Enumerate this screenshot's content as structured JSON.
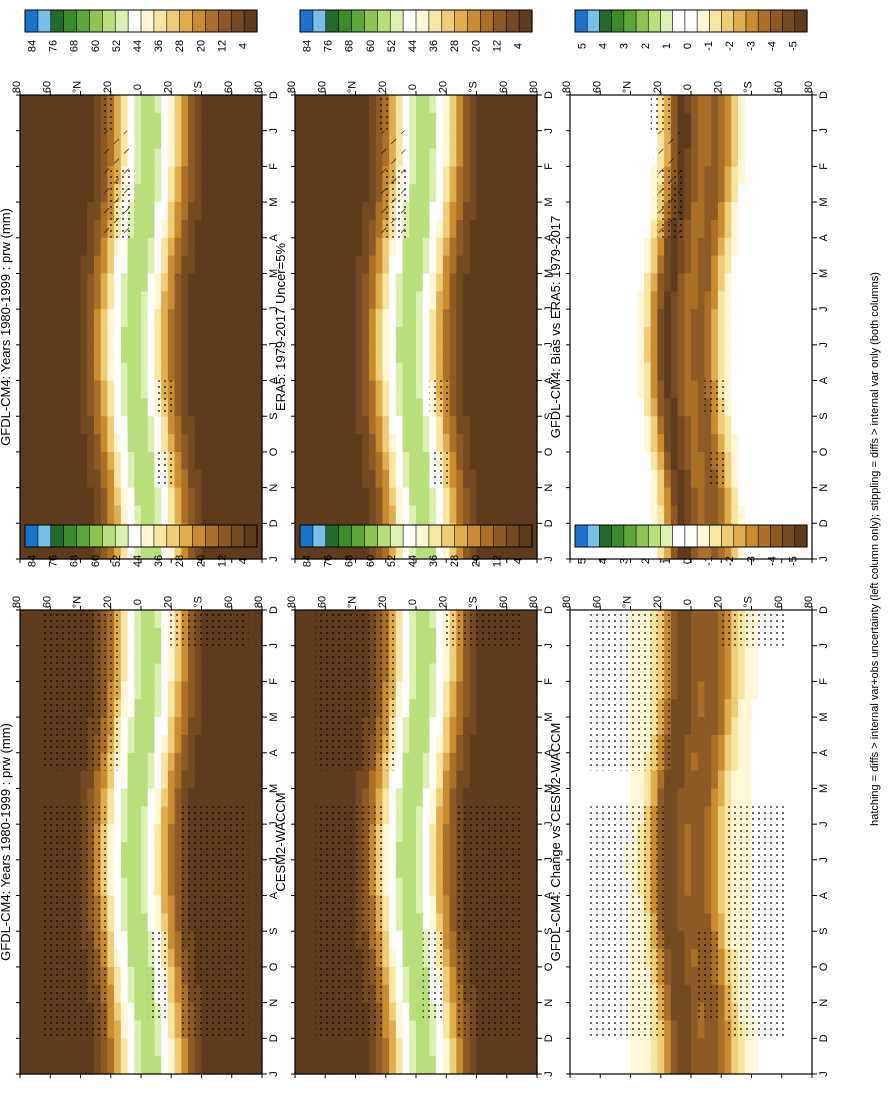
{
  "footer": "hatching = diffs > internal var+obs uncertainty (left column only); stippling = diffs > internal var only (both columns)",
  "lat_ticks": [
    "80",
    "60",
    "°N",
    "20",
    "0",
    "20",
    "°S",
    "60",
    "80"
  ],
  "month_ticks": [
    "D",
    "J",
    "F",
    "M",
    "A",
    "M",
    "J",
    "J",
    "A",
    "S",
    "O",
    "N",
    "D",
    "J"
  ],
  "chart_data": [
    {
      "type": "heatmap",
      "title": "GFDL-CM4: Years 1980-1999 : prw (mm)",
      "kind": "abs",
      "colorbar": [
        "84",
        "76",
        "68",
        "60",
        "52",
        "44",
        "36",
        "28",
        "20",
        "12",
        "4"
      ],
      "note": "column-integrated water vapour, latitude vs calendar month; maximum ~52-60 near the equator, decreasing poleward",
      "ylim": [
        -90,
        90
      ],
      "stipple": [
        [
          0,
          1,
          20,
          30
        ],
        [
          2,
          4,
          5,
          25
        ],
        [
          8,
          9,
          -25,
          -10
        ],
        [
          10,
          11,
          -25,
          -12
        ]
      ],
      "hatch": [
        [
          1,
          4,
          8,
          28
        ]
      ]
    },
    {
      "type": "heatmap",
      "title": "GFDL-CM4: Years 1980-1999 : prw (mm)",
      "kind": "abs",
      "colorbar": [
        "84",
        "76",
        "68",
        "60",
        "52",
        "44",
        "36",
        "28",
        "20",
        "12",
        "4"
      ],
      "note": "same field, stippling over high latitudes",
      "ylim": [
        -90,
        90
      ],
      "stipple": [
        [
          0,
          4.5,
          15,
          75
        ],
        [
          5.5,
          12,
          25,
          75
        ],
        [
          5.5,
          12,
          -80,
          -30
        ],
        [
          0,
          1,
          -80,
          -20
        ],
        [
          9,
          11.5,
          -20,
          -5
        ]
      ],
      "hatch": []
    },
    {
      "type": "heatmap",
      "title": "ERA5: 1979-2017 Uncer=5%",
      "kind": "abs",
      "colorbar": [
        "84",
        "76",
        "68",
        "60",
        "52",
        "44",
        "36",
        "28",
        "20",
        "12",
        "4"
      ],
      "note": "reanalysis climatology of precipitable water",
      "ylim": [
        -90,
        90
      ],
      "stipple": [
        [
          0,
          1,
          20,
          30
        ],
        [
          2,
          4,
          5,
          25
        ],
        [
          8,
          9,
          -25,
          -10
        ],
        [
          10,
          11,
          -25,
          -12
        ]
      ],
      "hatch": [
        [
          1,
          4,
          8,
          28
        ]
      ]
    },
    {
      "type": "heatmap",
      "title": "CESM2-WACCM",
      "kind": "abs",
      "colorbar": [
        "84",
        "76",
        "68",
        "60",
        "52",
        "44",
        "36",
        "28",
        "20",
        "12",
        "4"
      ],
      "note": "comparison model climatology",
      "ylim": [
        -90,
        90
      ],
      "stipple": [
        [
          0,
          4.5,
          15,
          75
        ],
        [
          5.5,
          12,
          25,
          75
        ],
        [
          5.5,
          12,
          -80,
          -30
        ],
        [
          0,
          1,
          -80,
          -20
        ],
        [
          9,
          11.5,
          -20,
          -5
        ]
      ],
      "hatch": []
    },
    {
      "type": "heatmap",
      "title": "GFDL-CM4: Bias vs ERA5: 1979-2017",
      "kind": "diff",
      "colorbar": [
        "5",
        "4",
        "3",
        "2",
        "1",
        "0",
        "-1",
        "-2",
        "-3",
        "-4",
        "-5"
      ],
      "note": "model minus ERA5; dry bias up to about -5 mm in the tropics",
      "ylim": [
        -90,
        90
      ],
      "stipple": [
        [
          0,
          1,
          15,
          30
        ],
        [
          2,
          4,
          5,
          25
        ],
        [
          8,
          9,
          -25,
          -10
        ],
        [
          10,
          11,
          -25,
          -12
        ]
      ],
      "hatch": [
        [
          1,
          4,
          8,
          28
        ]
      ]
    },
    {
      "type": "heatmap",
      "title": "GFDL-CM4: Change vs CESM2-WACCM",
      "kind": "diff",
      "colorbar": [
        "5",
        "4",
        "3",
        "2",
        "1",
        "0",
        "-1",
        "-2",
        "-3",
        "-4",
        "-5"
      ],
      "note": "GFDL-CM4 minus CESM2-WACCM; negative differences of about -1 to -5 mm over most latitudes",
      "ylim": [
        -90,
        90
      ],
      "stipple": [
        [
          0,
          4.5,
          15,
          75
        ],
        [
          5.5,
          12,
          20,
          75
        ],
        [
          5.5,
          12,
          -70,
          -25
        ],
        [
          0,
          1,
          -70,
          -20
        ],
        [
          9,
          11.5,
          -20,
          -5
        ]
      ],
      "hatch": []
    }
  ]
}
